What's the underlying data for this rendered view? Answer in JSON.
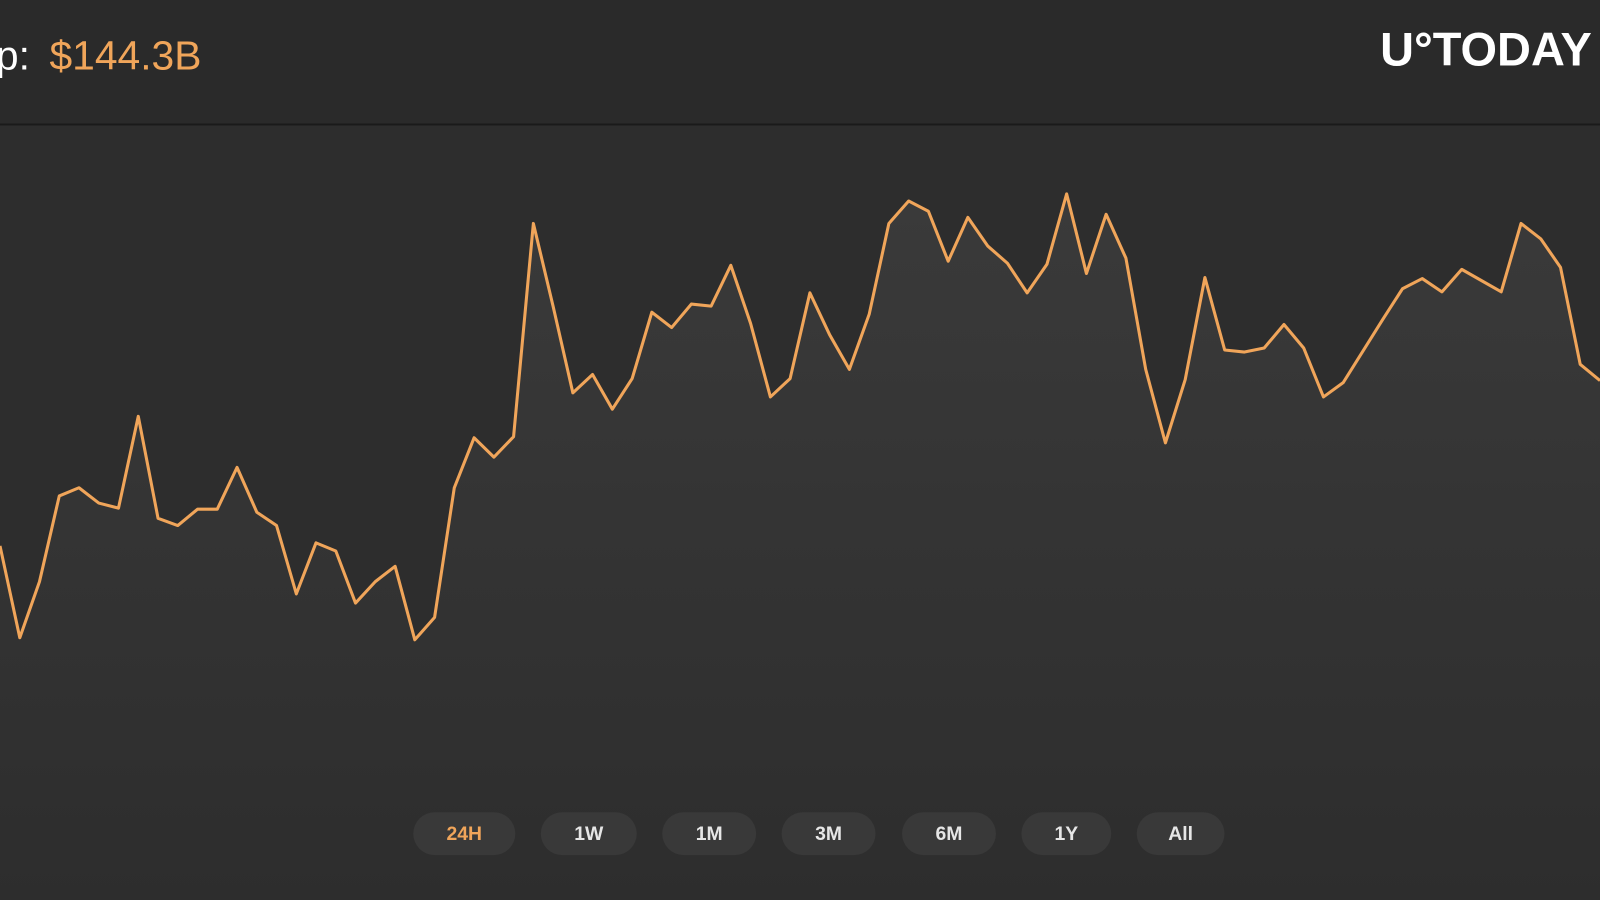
{
  "header": {
    "label": "p:",
    "value": "$144.3B",
    "logo": "U°TODAY"
  },
  "chart_data": {
    "type": "line",
    "color": "#f0a55a",
    "values": [
      165,
      75,
      130,
      214,
      222,
      207,
      202,
      292,
      192,
      185,
      201,
      201,
      242,
      198,
      185,
      118,
      168,
      160,
      109,
      130,
      145,
      73,
      95,
      222,
      271,
      252,
      272,
      481,
      400,
      315,
      333,
      299,
      329,
      394,
      379,
      402,
      400,
      440,
      383,
      311,
      329,
      413,
      372,
      338,
      392,
      481,
      503,
      493,
      444,
      487,
      459,
      442,
      413,
      441,
      510,
      432,
      490,
      447,
      338,
      266,
      328,
      428,
      357,
      355,
      359,
      382,
      359,
      311,
      325,
      356,
      387,
      417,
      427,
      414,
      436,
      425,
      414,
      481,
      466,
      438,
      343,
      327
    ]
  },
  "ranges": {
    "buttons": [
      "24H",
      "1W",
      "1M",
      "3M",
      "6M",
      "1Y",
      "All"
    ],
    "active": 0
  }
}
